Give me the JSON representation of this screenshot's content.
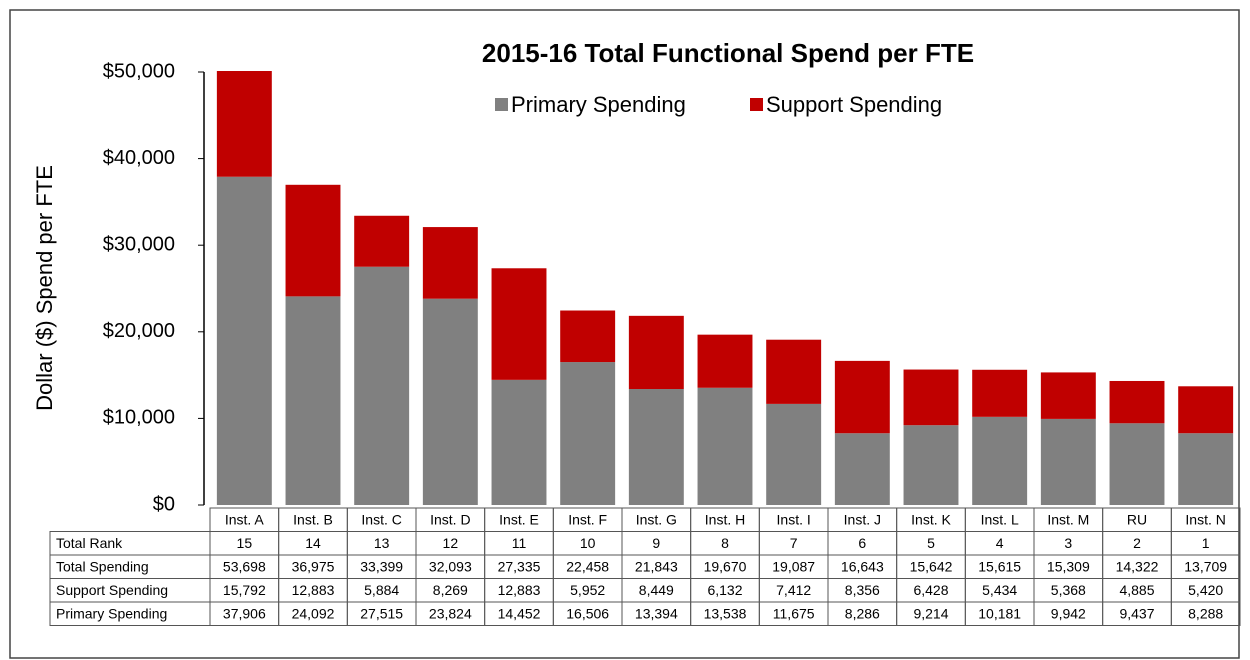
{
  "chart_data": {
    "type": "stacked_bar",
    "title": "2015-16 Total Functional Spend per FTE",
    "y_label": "Dollar ($) Spend per FTE",
    "categories": [
      "Inst. A",
      "Inst. B",
      "Inst. C",
      "Inst. D",
      "Inst. E",
      "Inst. F",
      "Inst. G",
      "Inst. H",
      "Inst. I",
      "Inst. J",
      "Inst. K",
      "Inst. L",
      "Inst. M",
      "RU",
      "Inst. N"
    ],
    "series": [
      {
        "name": "Primary Spending",
        "color": "#808080",
        "values": [
          37906,
          24092,
          27515,
          23824,
          14452,
          16506,
          13394,
          13538,
          11675,
          8286,
          9214,
          10181,
          9942,
          9437,
          8288
        ],
        "value_labels": [
          "37,906",
          "24,092",
          "27,515",
          "23,824",
          "14,452",
          "16,506",
          "13,394",
          "13,538",
          "11,675",
          "8,286",
          "9,214",
          "10,181",
          "9,942",
          "9,437",
          "8,288"
        ]
      },
      {
        "name": "Support Spending",
        "color": "#c00000",
        "values": [
          15792,
          12883,
          5884,
          8269,
          12883,
          5952,
          8449,
          6132,
          7412,
          8356,
          6428,
          5434,
          5368,
          4885,
          5420
        ],
        "value_labels": [
          "15,792",
          "12,883",
          "5,884",
          "8,269",
          "12,883",
          "5,952",
          "8,449",
          "6,132",
          "7,412",
          "8,356",
          "6,428",
          "5,434",
          "5,368",
          "4,885",
          "5,420"
        ]
      }
    ],
    "ylim": [
      0,
      50000
    ],
    "yticks": [
      {
        "value": 0,
        "label": "$0"
      },
      {
        "value": 10000,
        "label": "$10,000"
      },
      {
        "value": 20000,
        "label": "$20,000"
      },
      {
        "value": 30000,
        "label": "$30,000"
      },
      {
        "value": 40000,
        "label": "$40,000"
      },
      {
        "value": 50000,
        "label": "$50,000"
      }
    ],
    "legend": "top",
    "table": {
      "rank": {
        "label": "Total Rank",
        "values": [
          15,
          14,
          13,
          12,
          11,
          10,
          9,
          8,
          7,
          6,
          5,
          4,
          3,
          2,
          1
        ]
      },
      "total": {
        "label": "Total Spending",
        "values": [
          53698,
          36975,
          33399,
          32093,
          27335,
          22458,
          21843,
          19670,
          19087,
          16643,
          15642,
          15615,
          15309,
          14322,
          13709
        ],
        "value_labels": [
          "53,698",
          "36,975",
          "33,399",
          "32,093",
          "27,335",
          "22,458",
          "21,843",
          "19,670",
          "19,087",
          "16,643",
          "15,642",
          "15,615",
          "15,309",
          "14,322",
          "13,709"
        ]
      }
    }
  }
}
